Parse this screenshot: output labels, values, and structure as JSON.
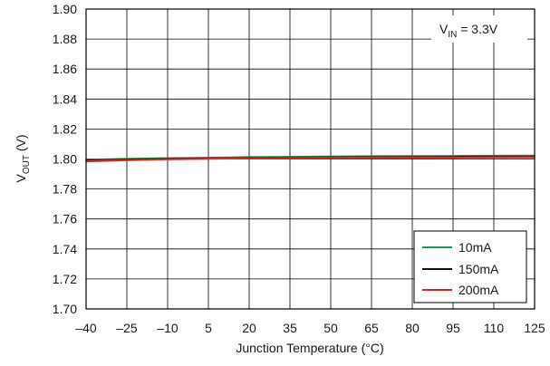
{
  "chart_data": {
    "type": "line",
    "xlabel": "Junction Temperature (°C)",
    "ylabel": {
      "main": "V",
      "sub": "OUT",
      "unit": " (V)"
    },
    "annotation": {
      "main": "V",
      "sub": "IN",
      "rest": " = 3.3V"
    },
    "xlim": [
      -40,
      125
    ],
    "ylim": [
      1.7,
      1.9
    ],
    "xticks": [
      -40,
      -25,
      -10,
      5,
      20,
      35,
      50,
      65,
      80,
      95,
      110,
      125
    ],
    "yticks": [
      1.7,
      1.72,
      1.74,
      1.76,
      1.78,
      1.8,
      1.82,
      1.84,
      1.86,
      1.88,
      1.9
    ],
    "x_tick_labels": [
      "–40",
      "–25",
      "–10",
      "5",
      "20",
      "35",
      "50",
      "65",
      "80",
      "95",
      "110",
      "125"
    ],
    "y_tick_labels": [
      "1.70",
      "1.72",
      "1.74",
      "1.76",
      "1.78",
      "1.80",
      "1.82",
      "1.84",
      "1.86",
      "1.88",
      "1.90"
    ],
    "grid": true,
    "legend_position": "bottom-right",
    "series": [
      {
        "name": "10mA",
        "color": "#1a9e4a",
        "x": [
          -40,
          -25,
          -10,
          5,
          20,
          35,
          50,
          65,
          80,
          95,
          110,
          125
        ],
        "y": [
          1.7995,
          1.8,
          1.8005,
          1.8008,
          1.8012,
          1.8014,
          1.8016,
          1.8018,
          1.8019,
          1.802,
          1.8021,
          1.8022
        ]
      },
      {
        "name": "150mA",
        "color": "#111111",
        "x": [
          -40,
          -25,
          -10,
          5,
          20,
          35,
          50,
          65,
          80,
          95,
          110,
          125
        ],
        "y": [
          1.799,
          1.7996,
          1.8001,
          1.8004,
          1.8007,
          1.8009,
          1.8011,
          1.8012,
          1.8013,
          1.8014,
          1.8015,
          1.8016
        ]
      },
      {
        "name": "200mA",
        "color": "#d42a2a",
        "x": [
          -40,
          -25,
          -10,
          5,
          20,
          35,
          50,
          65,
          80,
          95,
          110,
          125
        ],
        "y": [
          1.7985,
          1.7992,
          1.7998,
          1.8002,
          1.8005,
          1.8007,
          1.8008,
          1.8009,
          1.801,
          1.801,
          1.8011,
          1.8012
        ]
      }
    ]
  }
}
